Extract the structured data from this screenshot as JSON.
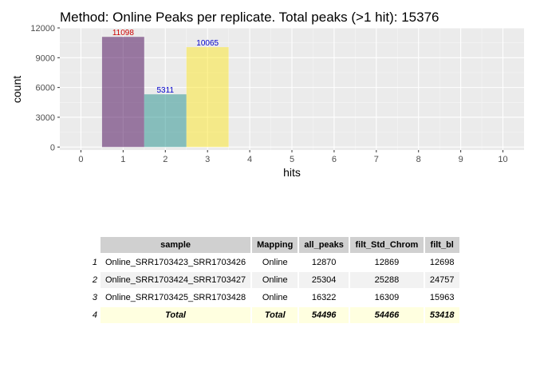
{
  "chart_data": {
    "type": "bar",
    "title": "Method: Online Peaks per replicate. Total peaks (>1 hit): 15376",
    "xlabel": "hits",
    "ylabel": "count",
    "x_ticks": [
      "0",
      "1",
      "2",
      "3",
      "4",
      "5",
      "6",
      "7",
      "8",
      "9",
      "10"
    ],
    "y_ticks": [
      "0",
      "3000",
      "6000",
      "9000",
      "12000"
    ],
    "xlim": [
      -0.5,
      10.5
    ],
    "ylim": [
      -300,
      12000
    ],
    "grid": true,
    "bars": [
      {
        "x": 1,
        "value": 11098,
        "label": "11098",
        "fill": "#440154",
        "label_color": "#cc0000"
      },
      {
        "x": 2,
        "value": 5311,
        "label": "5311",
        "fill": "#21908c",
        "label_color": "#0000cc"
      },
      {
        "x": 3,
        "value": 10065,
        "label": "10065",
        "fill": "#fde725",
        "label_color": "#0000cc"
      }
    ]
  },
  "table": {
    "headers": [
      "sample",
      "Mapping",
      "all_peaks",
      "filt_Std_Chrom",
      "filt_bl"
    ],
    "rows": [
      {
        "index": "1",
        "cells": [
          "Online_SRR1703423_SRR1703426",
          "Online",
          "12870",
          "12869",
          "12698"
        ]
      },
      {
        "index": "2",
        "cells": [
          "Online_SRR1703424_SRR1703427",
          "Online",
          "25304",
          "25288",
          "24757"
        ]
      },
      {
        "index": "3",
        "cells": [
          "Online_SRR1703425_SRR1703428",
          "Online",
          "16322",
          "16309",
          "15963"
        ]
      }
    ],
    "total": {
      "index": "4",
      "cells": [
        "Total",
        "Total",
        "54496",
        "54466",
        "53418"
      ]
    }
  }
}
